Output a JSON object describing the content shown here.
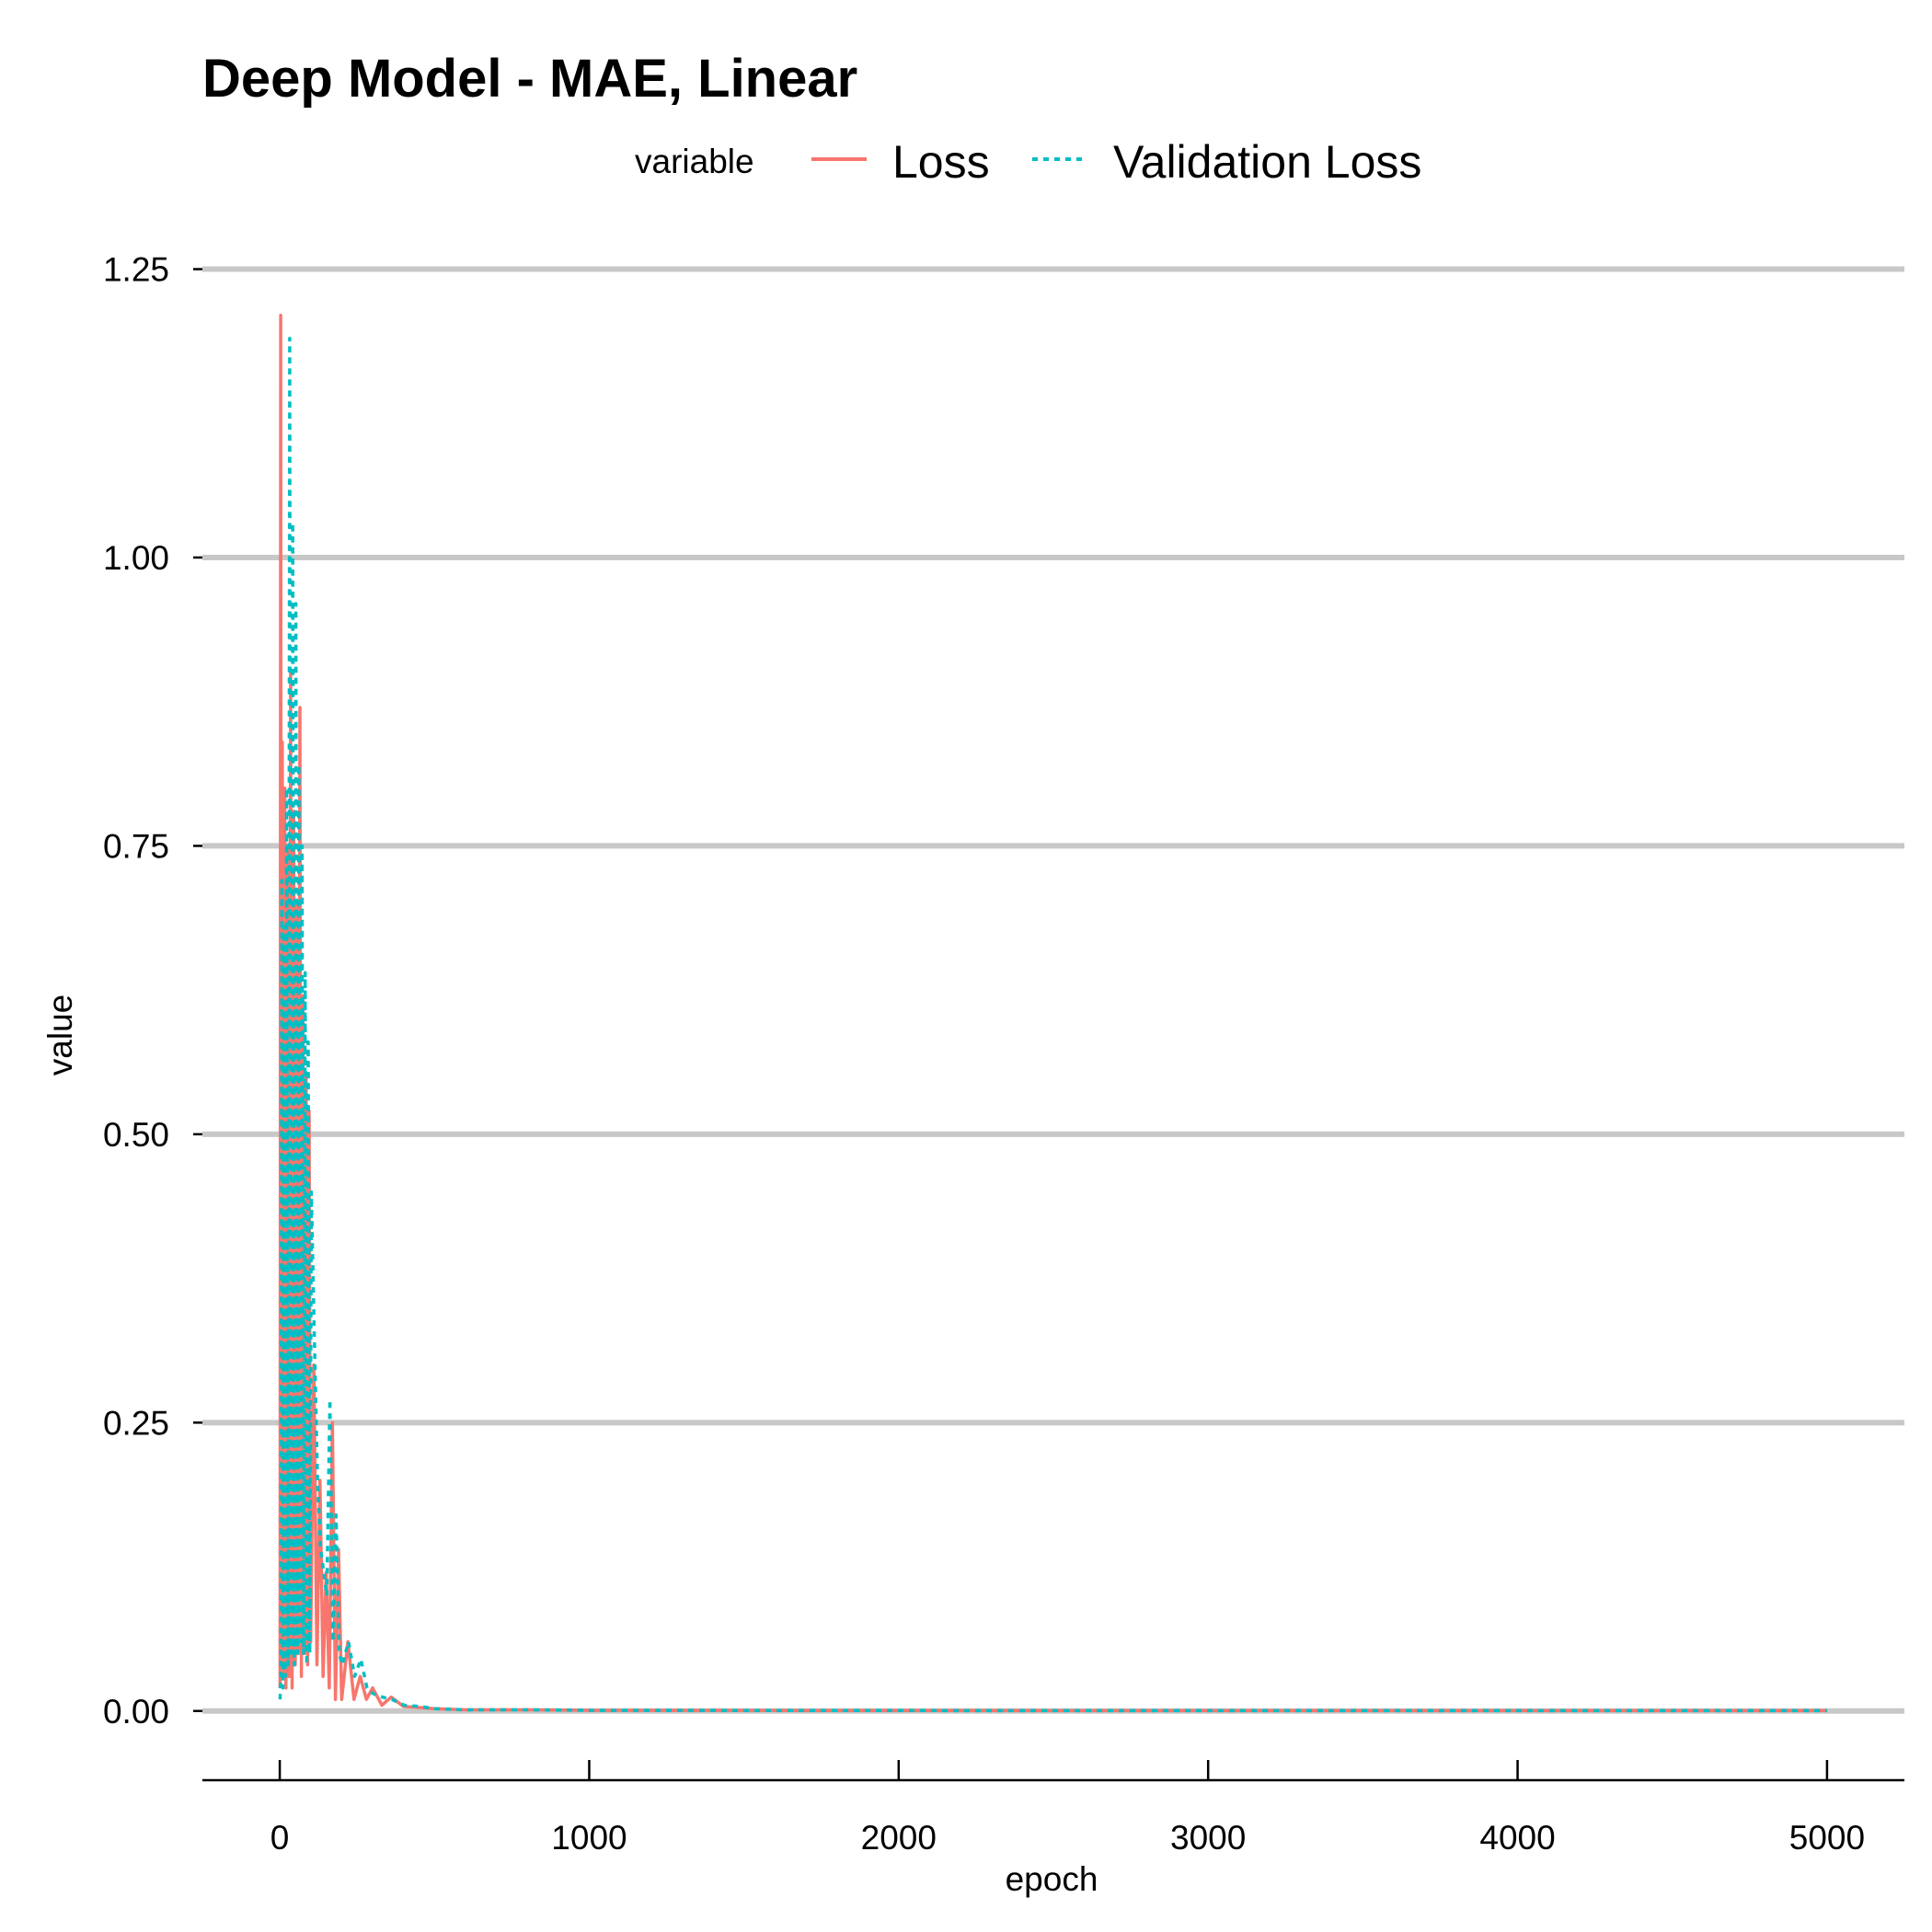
{
  "chart_data": {
    "type": "line",
    "title": "Deep Model - MAE, Linear",
    "xlabel": "epoch",
    "ylabel": "value",
    "xlim": [
      -250,
      5250
    ],
    "ylim": [
      -0.06,
      1.26
    ],
    "x_ticks": [
      0,
      1000,
      2000,
      3000,
      4000,
      5000
    ],
    "x_tick_labels": [
      "0",
      "1000",
      "2000",
      "3000",
      "4000",
      "5000"
    ],
    "y_ticks": [
      0,
      0.25,
      0.5,
      0.75,
      1.0,
      1.25
    ],
    "y_tick_labels": [
      "0.00",
      "0.25",
      "0.50",
      "0.75",
      "1.00",
      "1.25"
    ],
    "grid": "horizontal-major",
    "legend": {
      "title": "variable",
      "position": "top",
      "entries": [
        "Loss",
        "Validation Loss"
      ]
    },
    "series": [
      {
        "name": "Loss",
        "color": "#F8766D",
        "linetype": "solid",
        "x": [
          1,
          3,
          5,
          8,
          12,
          16,
          20,
          25,
          30,
          35,
          40,
          45,
          50,
          55,
          60,
          65,
          70,
          75,
          80,
          85,
          90,
          95,
          100,
          110,
          120,
          130,
          140,
          150,
          160,
          170,
          180,
          190,
          200,
          220,
          240,
          260,
          280,
          300,
          330,
          360,
          400,
          450,
          500,
          600,
          800,
          1000,
          2000,
          3000,
          4000,
          5000
        ],
        "y": [
          0.02,
          1.21,
          0.05,
          0.84,
          0.03,
          0.8,
          0.02,
          0.75,
          0.03,
          0.9,
          0.02,
          0.78,
          0.04,
          0.7,
          0.05,
          0.87,
          0.03,
          0.62,
          0.05,
          0.55,
          0.04,
          0.52,
          0.06,
          0.3,
          0.04,
          0.2,
          0.03,
          0.12,
          0.02,
          0.25,
          0.01,
          0.14,
          0.01,
          0.06,
          0.01,
          0.03,
          0.01,
          0.02,
          0.005,
          0.012,
          0.004,
          0.003,
          0.002,
          0.001,
          0.001,
          0.0005,
          0.0004,
          0.0003,
          0.0003,
          0.0003
        ]
      },
      {
        "name": "Validation Loss",
        "color": "#00BFC4",
        "linetype": "dotted",
        "x": [
          1,
          4,
          7,
          10,
          14,
          18,
          22,
          27,
          32,
          37,
          42,
          47,
          52,
          57,
          62,
          67,
          72,
          77,
          82,
          87,
          92,
          97,
          102,
          112,
          122,
          132,
          142,
          152,
          162,
          172,
          182,
          192,
          202,
          222,
          242,
          262,
          282,
          302,
          332,
          362,
          402,
          452,
          502,
          600,
          800,
          1000,
          2000,
          3000,
          4000,
          5000
        ],
        "y": [
          0.01,
          0.03,
          0.72,
          0.02,
          0.68,
          0.03,
          0.8,
          0.04,
          1.19,
          0.05,
          1.03,
          0.04,
          0.96,
          0.05,
          0.82,
          0.06,
          0.75,
          0.05,
          0.64,
          0.04,
          0.58,
          0.05,
          0.45,
          0.32,
          0.2,
          0.14,
          0.12,
          0.1,
          0.27,
          0.06,
          0.17,
          0.05,
          0.04,
          0.06,
          0.03,
          0.045,
          0.02,
          0.015,
          0.012,
          0.01,
          0.005,
          0.004,
          0.002,
          0.001,
          0.001,
          0.0005,
          0.0004,
          0.0003,
          0.0003,
          0.0003
        ]
      }
    ]
  }
}
